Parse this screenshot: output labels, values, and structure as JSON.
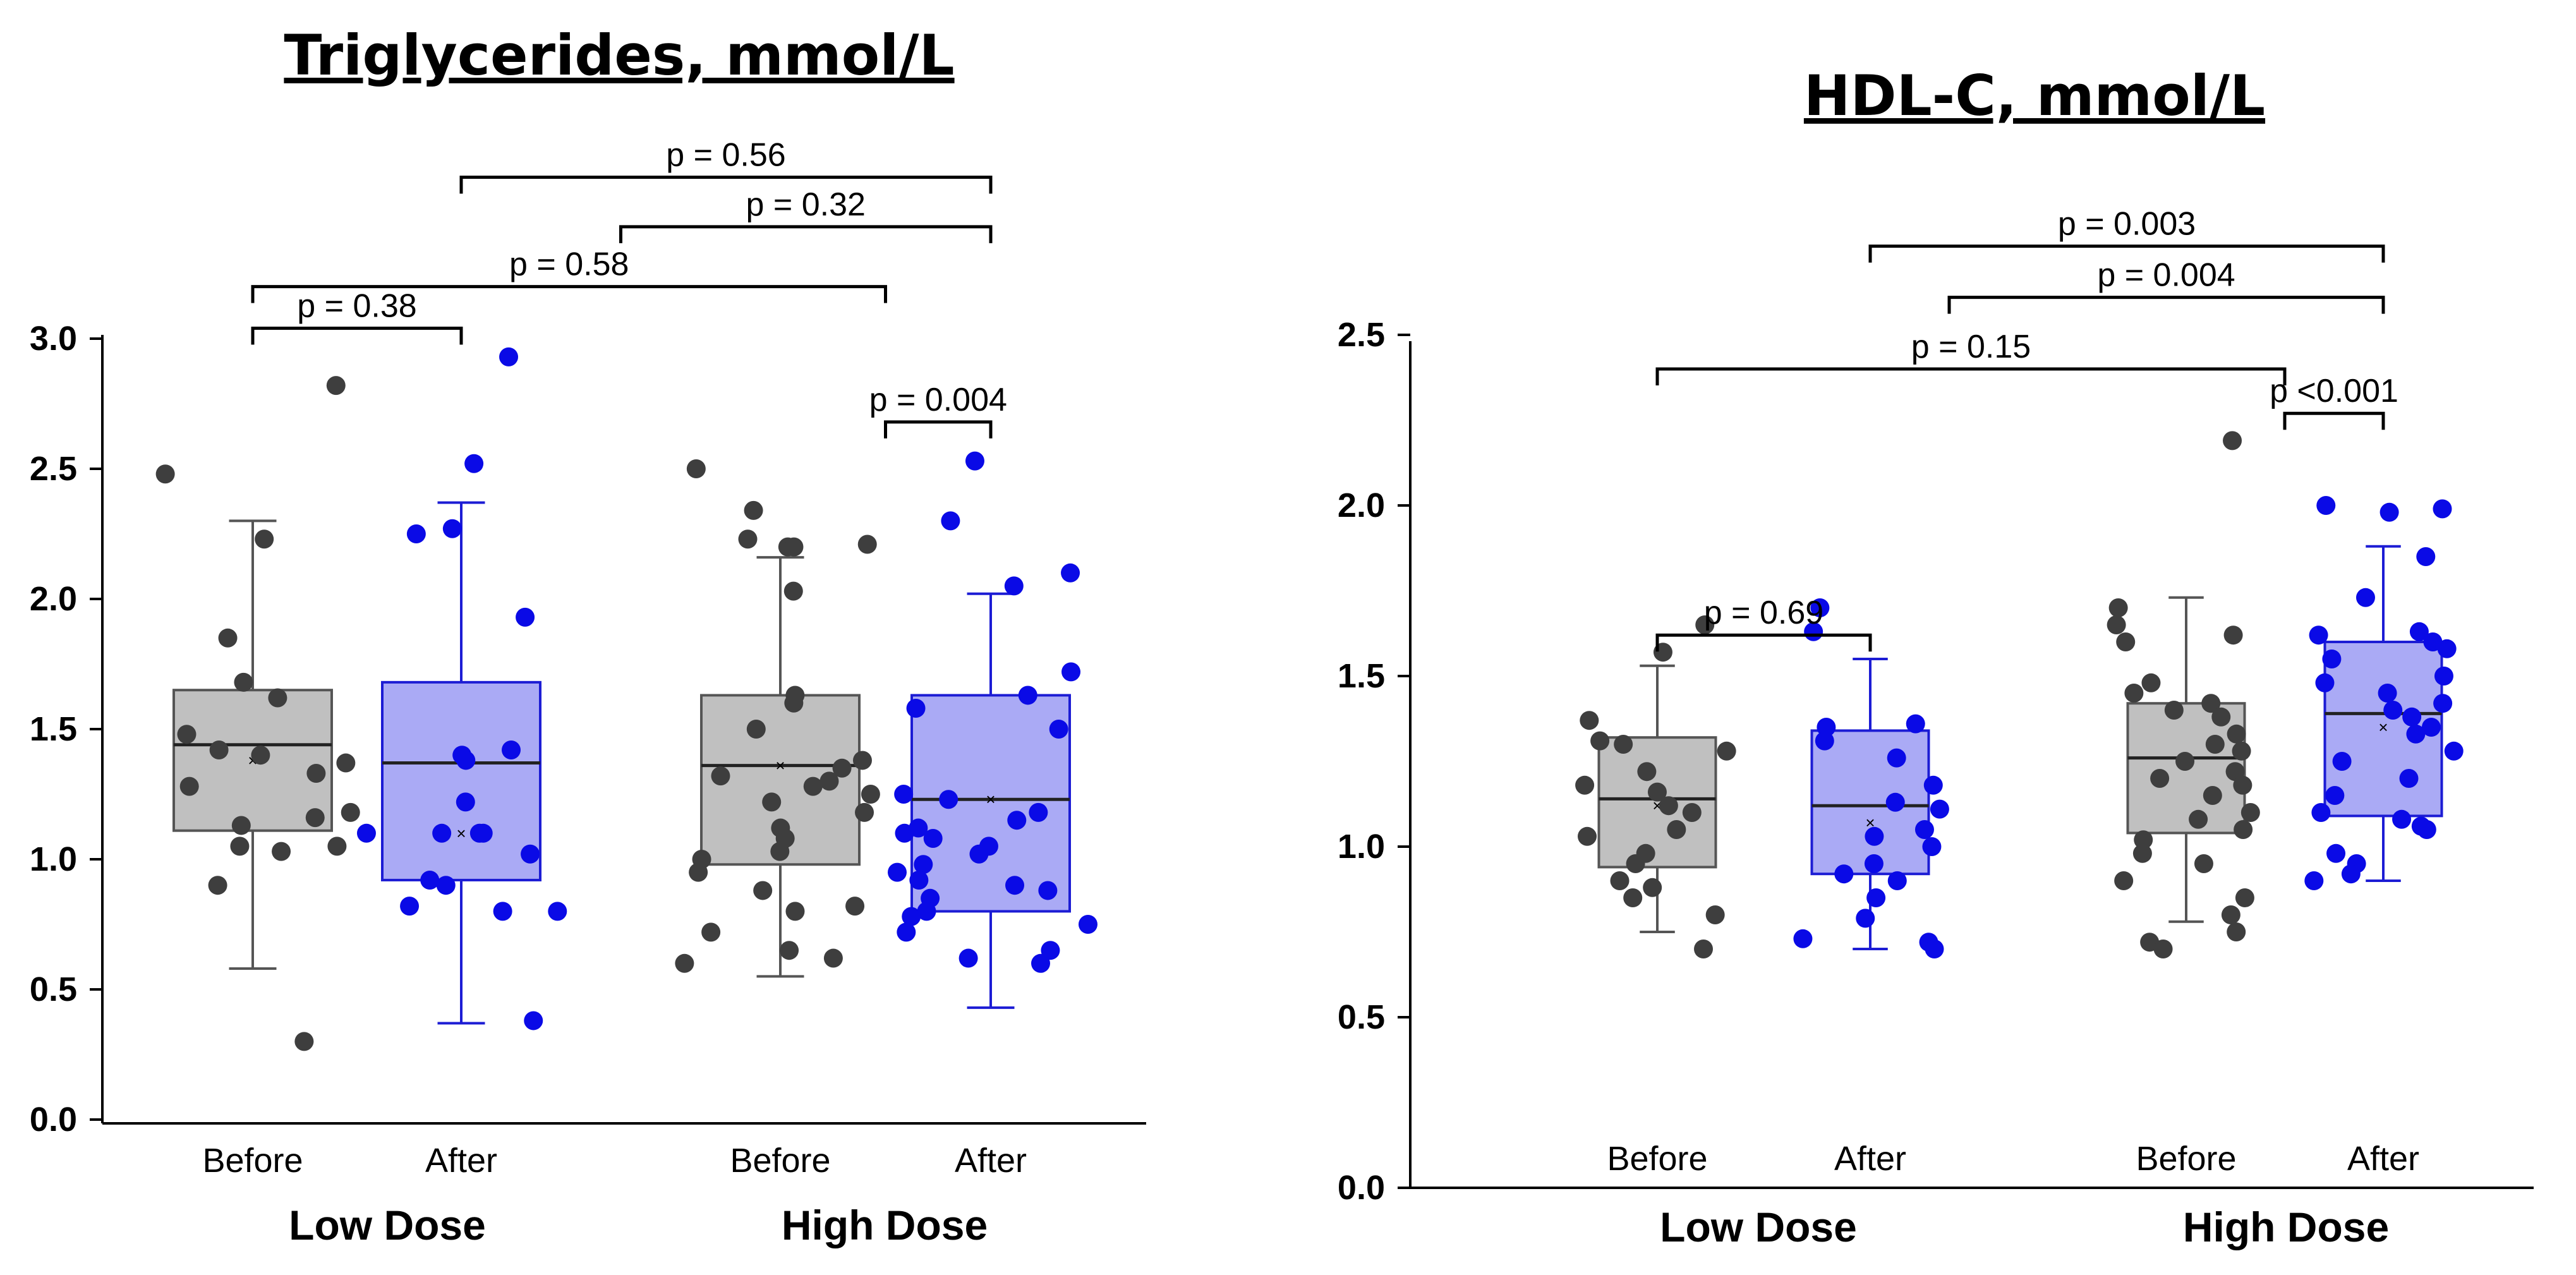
{
  "colors": {
    "before_box": "#c0c0c0",
    "before_dot": "#3e3e3e",
    "after_box": "#aaaaf5",
    "after_dot": "#0a0ae6",
    "after_line": "#1c1cd4",
    "axis": "#000000"
  },
  "chart_data": [
    {
      "type": "box",
      "title": "Triglycerides, mmol/L",
      "ylim": [
        0.0,
        3.0
      ],
      "yticks": [
        "0.0",
        "0.5",
        "1.0",
        "1.5",
        "2.0",
        "2.5",
        "3.0"
      ],
      "groups": [
        "Low Dose",
        "High Dose"
      ],
      "boxes": [
        {
          "group": "Low Dose",
          "condition": "Before",
          "whisker_low": 0.58,
          "q1": 1.11,
          "median": 1.44,
          "q3": 1.65,
          "whisker_high": 2.3,
          "mean": 1.38,
          "points": [
            2.82,
            2.48,
            2.23,
            1.85,
            1.68,
            1.62,
            1.48,
            1.42,
            1.4,
            1.37,
            1.33,
            1.28,
            1.18,
            1.16,
            1.13,
            1.05,
            1.05,
            1.03,
            0.9,
            0.3
          ]
        },
        {
          "group": "Low Dose",
          "condition": "After",
          "whisker_low": 0.37,
          "q1": 0.92,
          "median": 1.37,
          "q3": 1.68,
          "whisker_high": 2.37,
          "mean": 1.1,
          "points": [
            2.93,
            2.52,
            2.27,
            2.25,
            1.93,
            1.42,
            1.4,
            1.38,
            1.22,
            1.1,
            1.1,
            1.1,
            1.1,
            1.02,
            0.92,
            0.9,
            0.82,
            0.8,
            0.8,
            0.38
          ]
        },
        {
          "group": "High Dose",
          "condition": "Before",
          "whisker_low": 0.55,
          "q1": 0.98,
          "median": 1.36,
          "q3": 1.63,
          "whisker_high": 2.16,
          "mean": 1.36,
          "points": [
            2.5,
            2.34,
            2.23,
            2.21,
            2.2,
            2.2,
            2.03,
            1.63,
            1.6,
            1.5,
            1.38,
            1.35,
            1.32,
            1.3,
            1.28,
            1.25,
            1.22,
            1.18,
            1.12,
            1.08,
            1.03,
            1.0,
            0.95,
            0.88,
            0.82,
            0.8,
            0.72,
            0.65,
            0.62,
            0.6
          ]
        },
        {
          "group": "High Dose",
          "condition": "After",
          "whisker_low": 0.43,
          "q1": 0.8,
          "median": 1.23,
          "q3": 1.63,
          "whisker_high": 2.02,
          "mean": 1.23,
          "points": [
            2.53,
            2.3,
            2.1,
            2.05,
            1.72,
            1.63,
            1.58,
            1.5,
            1.25,
            1.23,
            1.18,
            1.15,
            1.12,
            1.1,
            1.08,
            1.05,
            1.02,
            0.98,
            0.95,
            0.92,
            0.9,
            0.88,
            0.85,
            0.8,
            0.78,
            0.75,
            0.72,
            0.65,
            0.62,
            0.6
          ]
        }
      ],
      "comparisons": [
        {
          "label": "p = 0.56",
          "from": 1,
          "to": 3,
          "y": 3.62
        },
        {
          "label": "p = 0.32",
          "from": 1.5,
          "to": 4,
          "y": 3.43
        },
        {
          "label": "p = 0.58",
          "from": 0,
          "to": 2.5,
          "y": 3.2
        },
        {
          "label": "p = 0.38",
          "from": 0,
          "to": 1,
          "y": 3.04
        },
        {
          "label": "p = 0.004",
          "from": 2.5,
          "to": 4,
          "y": 2.68
        }
      ]
    },
    {
      "type": "box",
      "title": "HDL-C, mmol/L",
      "ylim": [
        0.0,
        2.5
      ],
      "yticks": [
        "0.0",
        "0.5",
        "1.0",
        "1.5",
        "2.0",
        "2.5"
      ],
      "groups": [
        "Low Dose",
        "High Dose"
      ],
      "boxes": [
        {
          "group": "Low Dose",
          "condition": "Before",
          "whisker_low": 0.75,
          "q1": 0.94,
          "median": 1.14,
          "q3": 1.32,
          "whisker_high": 1.53,
          "mean": 1.12,
          "points": [
            1.65,
            1.57,
            1.37,
            1.31,
            1.3,
            1.28,
            1.22,
            1.18,
            1.16,
            1.12,
            1.1,
            1.05,
            1.03,
            0.98,
            0.95,
            0.9,
            0.88,
            0.85,
            0.8,
            0.7
          ]
        },
        {
          "group": "Low Dose",
          "condition": "After",
          "whisker_low": 0.7,
          "q1": 0.92,
          "median": 1.12,
          "q3": 1.34,
          "whisker_high": 1.55,
          "mean": 1.07,
          "points": [
            1.7,
            1.63,
            1.36,
            1.35,
            1.31,
            1.26,
            1.18,
            1.13,
            1.11,
            1.05,
            1.03,
            1.0,
            0.95,
            0.92,
            0.9,
            0.85,
            0.79,
            0.73,
            0.72,
            0.7
          ]
        },
        {
          "group": "High Dose",
          "condition": "Before",
          "whisker_low": 0.78,
          "q1": 1.04,
          "median": 1.26,
          "q3": 1.42,
          "whisker_high": 1.73,
          "mean": 1.25,
          "points": [
            2.19,
            1.7,
            1.65,
            1.62,
            1.6,
            1.48,
            1.45,
            1.42,
            1.4,
            1.38,
            1.33,
            1.3,
            1.28,
            1.25,
            1.22,
            1.2,
            1.18,
            1.15,
            1.1,
            1.08,
            1.05,
            1.02,
            0.98,
            0.95,
            0.9,
            0.85,
            0.8,
            0.75,
            0.72,
            0.7
          ]
        },
        {
          "group": "High Dose",
          "condition": "After",
          "whisker_low": 0.9,
          "q1": 1.09,
          "median": 1.39,
          "q3": 1.6,
          "whisker_high": 1.88,
          "mean": 1.35,
          "points": [
            2.0,
            1.99,
            1.98,
            1.85,
            1.73,
            1.63,
            1.62,
            1.6,
            1.58,
            1.55,
            1.5,
            1.48,
            1.45,
            1.42,
            1.4,
            1.38,
            1.35,
            1.33,
            1.28,
            1.25,
            1.2,
            1.15,
            1.1,
            1.08,
            1.06,
            1.05,
            0.98,
            0.95,
            0.92,
            0.9
          ]
        }
      ],
      "comparisons": [
        {
          "label": "p = 0.003",
          "from": 1,
          "to": 3,
          "y": 2.76
        },
        {
          "label": "p = 0.004",
          "from": 1.25,
          "to": 4,
          "y": 2.61
        },
        {
          "label": "p = 0.15",
          "from": 0,
          "to": 2.5,
          "y": 2.4
        },
        {
          "label": "p <0.001",
          "from": 2.5,
          "to": 4,
          "y": 2.27
        },
        {
          "label": "p = 0.69",
          "from": 0,
          "to": 1,
          "y": 1.62
        }
      ]
    }
  ]
}
